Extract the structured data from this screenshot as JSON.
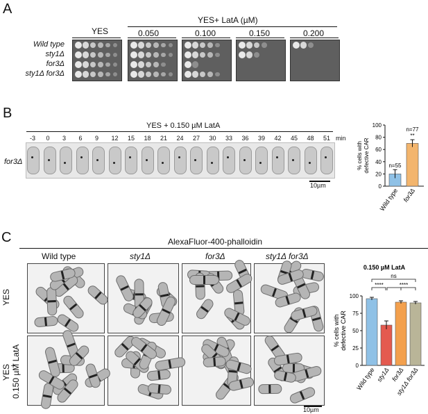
{
  "panels": {
    "a": {
      "letter": "A",
      "header_main": "YES+ LatA  (µM)",
      "col_labels": [
        "YES",
        "0.050",
        "0.100",
        "0.150",
        "0.200"
      ],
      "row_labels": [
        "Wild type",
        "sty1Δ",
        "for3Δ",
        "sty1Δ for3Δ"
      ]
    },
    "b": {
      "letter": "B",
      "condition": "YES + 0.150 µM LatA",
      "timepoints": [
        "-3",
        "0",
        "3",
        "6",
        "9",
        "12",
        "15",
        "18",
        "21",
        "24",
        "27",
        "30",
        "33",
        "36",
        "39",
        "42",
        "45",
        "48",
        "51"
      ],
      "time_unit": "min",
      "strain_label": "for3Δ",
      "scalebar": "10µm"
    },
    "c": {
      "letter": "C",
      "stain": "AlexaFluor-400-phalloidin",
      "col_labels": [
        "Wild type",
        "sty1Δ",
        "for3Δ",
        "sty1Δ for3Δ"
      ],
      "row_labels": [
        "YES",
        "YES + 0.150 µM LatA"
      ],
      "row_label_yes": "YES",
      "row_label_lata_1": "YES",
      "row_label_lata_2": "+",
      "row_label_lata_3": "0.150 µM LatA",
      "scalebar": "10µm"
    }
  },
  "chart_data": [
    {
      "type": "bar",
      "ylabel": "% cells with defective CAR",
      "ylabel_1": "% cells with",
      "ylabel_2": "defective CAR",
      "categories": [
        "Wild type",
        "for3Δ"
      ],
      "values": [
        20,
        70
      ],
      "errors": [
        7,
        6
      ],
      "ylim": [
        0,
        100
      ],
      "yticks": [
        "0",
        "20",
        "40",
        "60",
        "80",
        "100"
      ],
      "annotations": [
        "n=55",
        "n=77",
        "**"
      ],
      "colors": [
        "#8fc1e6",
        "#f3b56d"
      ]
    },
    {
      "type": "bar",
      "title": "0.150 µM LatA",
      "ylabel": "% cells with defective CAR",
      "ylabel_1": "% cells with",
      "ylabel_2": "defective CAR",
      "categories": [
        "Wild type",
        "sty1Δ",
        "for3Δ",
        "sty1Δ for3Δ"
      ],
      "values": [
        96,
        58,
        91,
        90
      ],
      "errors": [
        2,
        6,
        2,
        2
      ],
      "ylim": [
        0,
        100
      ],
      "yticks": [
        "0",
        "25",
        "50",
        "75",
        "100"
      ],
      "significance": [
        "****",
        "****",
        "ns"
      ],
      "colors": [
        "#8fc1e6",
        "#e45a4f",
        "#f3a04d",
        "#b9b598"
      ]
    }
  ]
}
